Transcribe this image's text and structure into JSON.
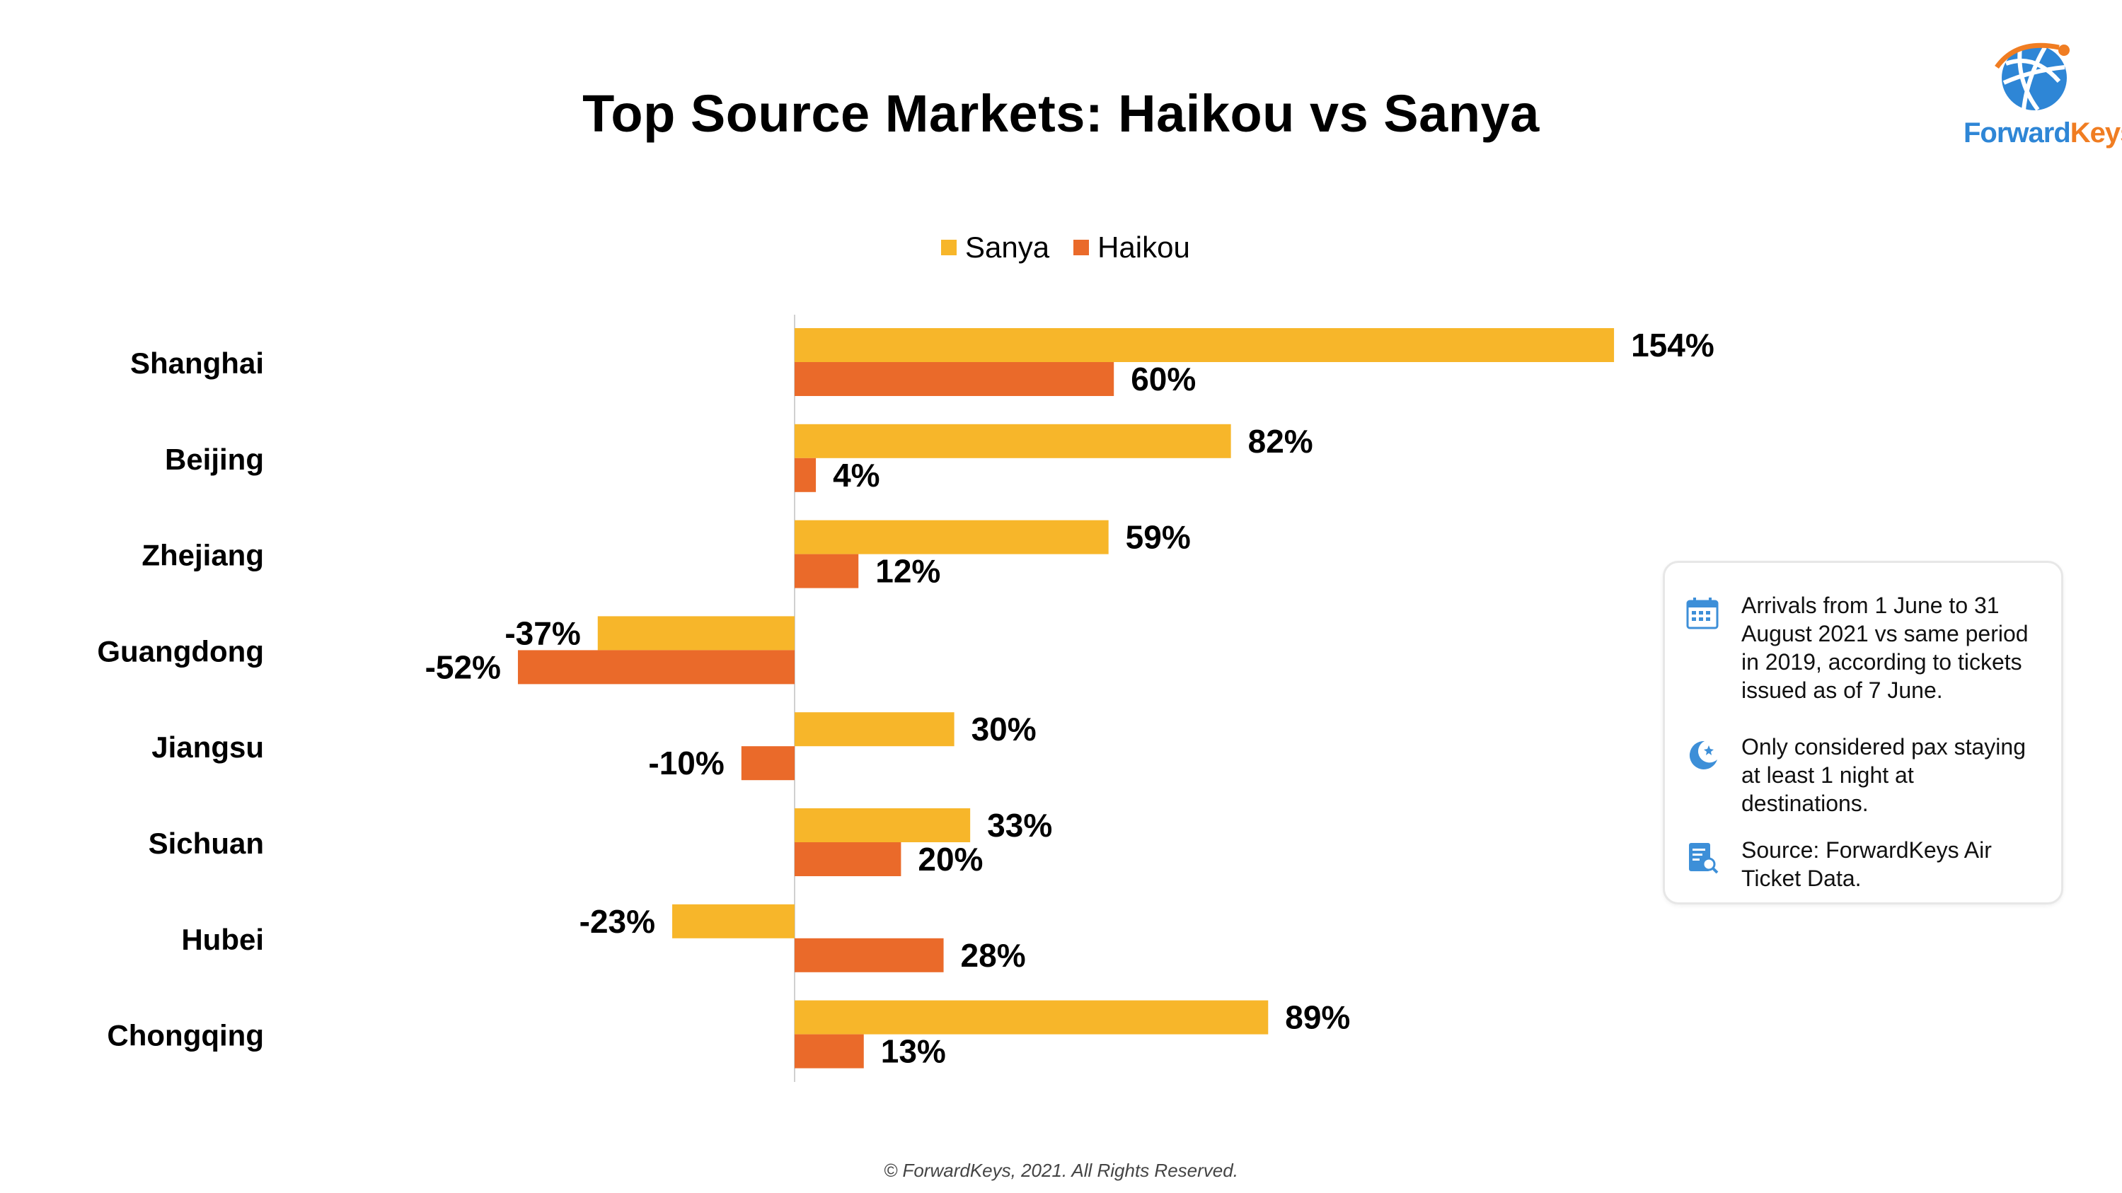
{
  "brand": {
    "logo_name": "ForwardKeys",
    "logo_text_part1": "Forward",
    "logo_text_part2": "Keys"
  },
  "footer": "© ForwardKeys, 2021. All Rights Reserved.",
  "info_box": [
    {
      "icon": "calendar-icon",
      "text": "Arrivals from 1 June to 31 August 2021 vs same period in 2019, according to tickets issued as of 7 June."
    },
    {
      "icon": "moon-icon",
      "text": "Only considered pax staying at least 1 night at destinations."
    },
    {
      "icon": "document-search-icon",
      "text": "Source: ForwardKeys Air Ticket Data."
    }
  ],
  "colors": {
    "sanya": "#F7B62A",
    "haikou": "#EA6A2A",
    "axis": "#d0d0d0",
    "icon": "#3d8fd8"
  },
  "chart_data": {
    "type": "bar",
    "orientation": "horizontal",
    "title": "Top Source Markets: Haikou vs Sanya",
    "categories": [
      "Shanghai",
      "Beijing",
      "Zhejiang",
      "Guangdong",
      "Jiangsu",
      "Sichuan",
      "Hubei",
      "Chongqing"
    ],
    "series": [
      {
        "name": "Sanya",
        "color": "#F7B62A",
        "values": [
          154,
          82,
          59,
          -37,
          30,
          33,
          -23,
          89
        ],
        "labels": [
          "154%",
          "82%",
          "59%",
          "-37%",
          "30%",
          "33%",
          "-23%",
          "89%"
        ]
      },
      {
        "name": "Haikou",
        "color": "#EA6A2A",
        "values": [
          60,
          4,
          12,
          -52,
          -10,
          20,
          28,
          13
        ],
        "labels": [
          "60%",
          "4%",
          "12%",
          "-52%",
          "-10%",
          "20%",
          "28%",
          "13%"
        ]
      }
    ],
    "unit": "%",
    "legend_position": "top",
    "grid": false
  }
}
